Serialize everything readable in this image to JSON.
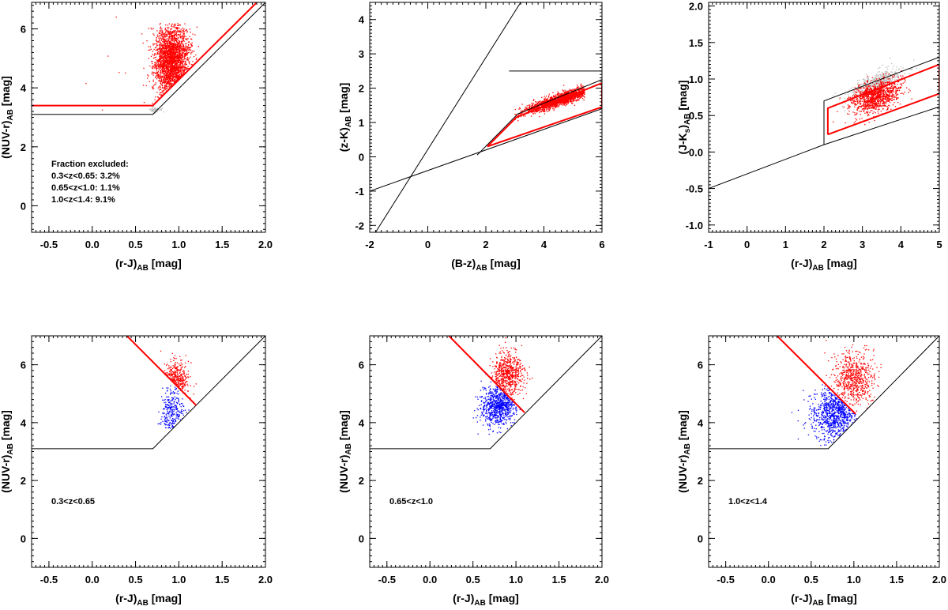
{
  "figure": {
    "panels": [
      "panel-fraction-excluded",
      "panel-bz-zk",
      "panel-rj-jk",
      "panel-z03-065",
      "panel-z065-10",
      "panel-z10-14"
    ]
  },
  "chart_data": [
    {
      "type": "scatter",
      "id": "p1",
      "xlabel": "(r-J)",
      "xlabel_sub": "AB",
      "xlabel_unit": " [mag]",
      "ylabel": "(NUV-r)",
      "ylabel_sub": "AB",
      "ylabel_unit": " [mag]",
      "xlim": [
        -0.7,
        2.0
      ],
      "ylim": [
        -0.9,
        6.9
      ],
      "xticks": [
        -0.5,
        0.0,
        0.5,
        1.0,
        1.5,
        2.0
      ],
      "xtick_labels": [
        "-0.5",
        "0.0",
        "0.5",
        "1.0",
        "1.5",
        "2.0"
      ],
      "yticks": [
        0,
        2,
        4,
        6
      ],
      "ytick_labels": [
        "0",
        "2",
        "4",
        "6"
      ],
      "lines": [
        {
          "color": "#000000",
          "points": [
            [
              -0.7,
              3.1
            ],
            [
              0.7,
              3.1
            ],
            [
              2.0,
              6.9
            ]
          ]
        },
        {
          "color": "#ff0000",
          "points": [
            [
              -0.7,
              3.4
            ],
            [
              0.7,
              3.4
            ],
            [
              1.9,
              6.9
            ]
          ]
        }
      ],
      "clouds": [
        {
          "color": "#ff0000",
          "n": 2400,
          "cx": 0.92,
          "cy": 4.9,
          "sx": 0.1,
          "sy": 0.65,
          "seed": 11,
          "clipAbove": [
            [
              0.7,
              3.4
            ],
            [
              1.9,
              6.9
            ]
          ],
          "ymax": 6.2
        },
        {
          "color": "#ff0000",
          "n": 12,
          "cx": 0.3,
          "cy": 4.5,
          "sx": 0.25,
          "sy": 0.8,
          "seed": 12
        },
        {
          "color": "#bbbbbb",
          "n": 60,
          "cx": 0.72,
          "cy": 3.25,
          "sx": 0.04,
          "sy": 0.05,
          "seed": 13
        }
      ],
      "annotations": [
        "Fraction excluded:",
        "0.3<z<0.65: 3.2%",
        "0.65<z<1.0: 1.1%",
        "1.0<z<1.4: 9.1%"
      ]
    },
    {
      "type": "scatter",
      "id": "p2",
      "xlabel": "(B-z)",
      "xlabel_sub": "AB",
      "xlabel_unit": " [mag]",
      "ylabel": "(z-K)",
      "ylabel_sub": "AB",
      "ylabel_unit": " [mag]",
      "xlim": [
        -2,
        6
      ],
      "ylim": [
        -2.2,
        4.5
      ],
      "xticks": [
        -2,
        0,
        2,
        4,
        6
      ],
      "xtick_labels": [
        "-2",
        "0",
        "2",
        "4",
        "6"
      ],
      "yticks": [
        -2,
        -1,
        0,
        1,
        2,
        3,
        4
      ],
      "ytick_labels": [
        "-2",
        "-1",
        "0",
        "1",
        "2",
        "3",
        "4"
      ],
      "lines": [
        {
          "color": "#000000",
          "points": [
            [
              -2,
              -1.0
            ],
            [
              6,
              1.4
            ]
          ]
        },
        {
          "color": "#000000",
          "points": [
            [
              -1.8,
              -2.2
            ],
            [
              3.2,
              4.5
            ]
          ]
        },
        {
          "color": "#000000",
          "points": [
            [
              2.8,
              2.5
            ],
            [
              6,
              2.5
            ]
          ]
        },
        {
          "color": "#000000",
          "points": [
            [
              1.7,
              0.05
            ],
            [
              3.1,
              1.25
            ],
            [
              6,
              2.25
            ]
          ]
        },
        {
          "color": "#ff0000",
          "points": [
            [
              2.05,
              0.3
            ],
            [
              3.05,
              1.15
            ],
            [
              6,
              2.15
            ],
            [
              6,
              1.45
            ],
            [
              2.05,
              0.3
            ]
          ]
        }
      ],
      "clouds": [
        {
          "color": "#ff0000",
          "n": 1700,
          "cx": 4.6,
          "cy": 1.68,
          "sx": 0.65,
          "sy": 0.09,
          "seed": 21,
          "slope": 0.28,
          "xmin": 3.0,
          "xmax": 5.4
        }
      ],
      "annotations": []
    },
    {
      "type": "scatter",
      "id": "p3",
      "xlabel": "(r-J)",
      "xlabel_sub": "AB",
      "xlabel_unit": " [mag]",
      "ylabel": "(J-K",
      "ylabel_sub2": "s",
      "ylabel_after": ")",
      "ylabel_sub": "AB",
      "ylabel_unit": " [mag]",
      "xlim": [
        -1,
        5
      ],
      "ylim": [
        -1.1,
        2.05
      ],
      "xticks": [
        -1,
        0,
        1,
        2,
        3,
        4,
        5
      ],
      "xtick_labels": [
        "-1",
        "0",
        "1",
        "2",
        "3",
        "4",
        "5"
      ],
      "yticks": [
        -1.0,
        -0.5,
        0.0,
        0.5,
        1.0,
        1.5,
        2.0
      ],
      "ytick_labels": [
        "-1.0",
        "-0.5",
        "0.0",
        "0.5",
        "1.0",
        "1.5",
        "2.0"
      ],
      "lines": [
        {
          "color": "#000000",
          "points": [
            [
              -1,
              -0.5
            ],
            [
              2,
              0.1
            ],
            [
              2,
              0.7
            ],
            [
              5,
              1.3
            ]
          ]
        },
        {
          "color": "#000000",
          "points": [
            [
              2,
              0.1
            ],
            [
              5,
              0.62
            ]
          ]
        },
        {
          "color": "#ff0000",
          "points": [
            [
              2.1,
              0.24
            ],
            [
              2.1,
              0.6
            ],
            [
              5,
              1.2
            ],
            [
              5,
              0.8
            ],
            [
              2.1,
              0.24
            ]
          ]
        }
      ],
      "clouds": [
        {
          "color": "#bbbbbb",
          "n": 500,
          "cx": 3.4,
          "cy": 0.95,
          "sx": 0.35,
          "sy": 0.07,
          "seed": 31,
          "slope": 0.2
        },
        {
          "color": "#ff0000",
          "n": 1100,
          "cx": 3.35,
          "cy": 0.76,
          "sx": 0.32,
          "sy": 0.1,
          "seed": 32,
          "slope": 0.15
        }
      ],
      "annotations": []
    },
    {
      "type": "scatter",
      "id": "p4",
      "xlabel": "(r-J)",
      "xlabel_sub": "AB",
      "xlabel_unit": " [mag]",
      "ylabel": "(NUV-r)",
      "ylabel_sub": "AB",
      "ylabel_unit": " [mag]",
      "xlim": [
        -0.7,
        2.0
      ],
      "ylim": [
        -1.0,
        7.0
      ],
      "xticks": [
        -0.5,
        0.0,
        0.5,
        1.0,
        1.5,
        2.0
      ],
      "xtick_labels": [
        "-0.5",
        "0.0",
        "0.5",
        "1.0",
        "1.5",
        "2.0"
      ],
      "yticks": [
        0,
        2,
        4,
        6
      ],
      "ytick_labels": [
        "0",
        "2",
        "4",
        "6"
      ],
      "lines": [
        {
          "color": "#000000",
          "points": [
            [
              -0.7,
              3.1
            ],
            [
              0.7,
              3.1
            ],
            [
              2.0,
              7.0
            ]
          ]
        },
        {
          "color": "#ff0000",
          "points": [
            [
              0.4,
              7.0
            ],
            [
              1.2,
              4.6
            ]
          ]
        }
      ],
      "clouds": [
        {
          "color": "#ff0000",
          "n": 300,
          "cx": 0.97,
          "cy": 5.5,
          "sx": 0.07,
          "sy": 0.35,
          "seed": 41,
          "split": {
            "dir": "above",
            "p": [
              [
                0.4,
                7.0
              ],
              [
                1.2,
                4.6
              ]
            ]
          }
        },
        {
          "color": "#0000ff",
          "n": 260,
          "cx": 0.92,
          "cy": 4.4,
          "sx": 0.07,
          "sy": 0.4,
          "seed": 42,
          "split": {
            "dir": "below",
            "p": [
              [
                0.4,
                7.0
              ],
              [
                1.2,
                4.6
              ]
            ]
          },
          "ymin": 3.8
        }
      ],
      "annotations": [
        "0.3<z<0.65"
      ]
    },
    {
      "type": "scatter",
      "id": "p5",
      "xlabel": "(r-J)",
      "xlabel_sub": "AB",
      "xlabel_unit": " [mag]",
      "ylabel": "(NUV-r)",
      "ylabel_sub": "AB",
      "ylabel_unit": " [mag]",
      "xlim": [
        -0.7,
        2.0
      ],
      "ylim": [
        -1.0,
        7.0
      ],
      "xticks": [
        -0.5,
        0.0,
        0.5,
        1.0,
        1.5,
        2.0
      ],
      "xtick_labels": [
        "-0.5",
        "0.0",
        "0.5",
        "1.0",
        "1.5",
        "2.0"
      ],
      "yticks": [
        0,
        2,
        4,
        6
      ],
      "ytick_labels": [
        "0",
        "2",
        "4",
        "6"
      ],
      "lines": [
        {
          "color": "#000000",
          "points": [
            [
              -0.7,
              3.1
            ],
            [
              0.7,
              3.1
            ],
            [
              2.0,
              7.0
            ]
          ]
        },
        {
          "color": "#ff0000",
          "points": [
            [
              0.22,
              7.0
            ],
            [
              1.1,
              4.35
            ]
          ]
        }
      ],
      "clouds": [
        {
          "color": "#ff0000",
          "n": 650,
          "cx": 0.9,
          "cy": 5.6,
          "sx": 0.09,
          "sy": 0.4,
          "seed": 51,
          "split": {
            "dir": "above",
            "p": [
              [
                0.22,
                7.0
              ],
              [
                1.1,
                4.35
              ]
            ]
          }
        },
        {
          "color": "#0000ff",
          "n": 750,
          "cx": 0.8,
          "cy": 4.6,
          "sx": 0.1,
          "sy": 0.35,
          "seed": 52,
          "split": {
            "dir": "below",
            "p": [
              [
                0.22,
                7.0
              ],
              [
                1.1,
                4.35
              ]
            ]
          },
          "ymin": 3.6
        }
      ],
      "annotations": [
        "0.65<z<1.0"
      ]
    },
    {
      "type": "scatter",
      "id": "p6",
      "xlabel": "(r-J)",
      "xlabel_sub": "AB",
      "xlabel_unit": " [mag]",
      "ylabel": "(NUV-r)",
      "ylabel_sub": "AB",
      "ylabel_unit": " [mag]",
      "xlim": [
        -0.7,
        2.0
      ],
      "ylim": [
        -1.0,
        7.0
      ],
      "xticks": [
        -0.5,
        0.0,
        0.5,
        1.0,
        1.5,
        2.0
      ],
      "xtick_labels": [
        "-0.5",
        "0.0",
        "0.5",
        "1.0",
        "1.5",
        "2.0"
      ],
      "yticks": [
        0,
        2,
        4,
        6
      ],
      "ytick_labels": [
        "0",
        "2",
        "4",
        "6"
      ],
      "lines": [
        {
          "color": "#000000",
          "points": [
            [
              -0.7,
              3.1
            ],
            [
              0.7,
              3.1
            ],
            [
              2.0,
              7.0
            ]
          ]
        },
        {
          "color": "#ff0000",
          "points": [
            [
              0.1,
              7.0
            ],
            [
              1.02,
              4.3
            ]
          ]
        }
      ],
      "clouds": [
        {
          "color": "#ff0000",
          "n": 650,
          "cx": 1.0,
          "cy": 5.5,
          "sx": 0.13,
          "sy": 0.45,
          "seed": 61,
          "split": {
            "dir": "above",
            "p": [
              [
                0.1,
                7.0
              ],
              [
                1.02,
                4.3
              ]
            ]
          }
        },
        {
          "color": "#0000ff",
          "n": 850,
          "cx": 0.78,
          "cy": 4.3,
          "sx": 0.14,
          "sy": 0.45,
          "seed": 62,
          "split": {
            "dir": "below",
            "p": [
              [
                0.1,
                7.0
              ],
              [
                1.02,
                4.3
              ]
            ]
          },
          "ymin": 3.2
        }
      ],
      "annotations": [
        "1.0<z<1.4"
      ]
    }
  ]
}
